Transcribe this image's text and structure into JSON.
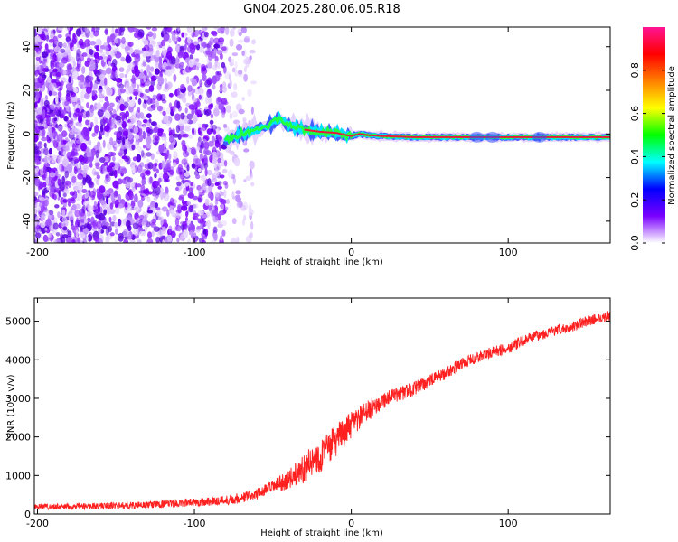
{
  "title": "GN04.2025.280.06.05.R18",
  "colors": {
    "snr_line": "#ff2020",
    "ridge": "#e8193c",
    "background": "#ffffff",
    "axis": "#000000"
  },
  "colormap": {
    "stops": [
      "#ffffff",
      "#7a00ff",
      "#0000ff",
      "#00ffff",
      "#00ff00",
      "#ffff00",
      "#ff8000",
      "#ff0000",
      "#ff1493"
    ]
  },
  "chart_data": [
    {
      "type": "heatmap",
      "title": "GN04.2025.280.06.05.R18",
      "xlabel": "Height of straight line (km)",
      "ylabel": "Frequency (Hz)",
      "xlim": [
        -202,
        165
      ],
      "ylim": [
        -50,
        49
      ],
      "xticks": [
        -200,
        -100,
        0,
        100
      ],
      "xtick_labels": [
        "-200",
        "-100",
        "0",
        "100"
      ],
      "yticks": [
        -40,
        -20,
        0,
        20,
        40
      ],
      "ytick_labels": [
        "-40",
        "-20",
        "0",
        "20",
        "40"
      ],
      "colorbar": {
        "label": "Normalized spectral amplitude",
        "range": [
          0,
          1
        ],
        "ticks": [
          0.0,
          0.2,
          0.4,
          0.6,
          0.8
        ],
        "tick_labels": [
          "0.0",
          "0.2",
          "0.4",
          "0.6",
          "0.8"
        ]
      },
      "ridge_track": {
        "x": [
          -80,
          -70,
          -60,
          -50,
          -45,
          -40,
          -35,
          -30,
          -20,
          -10,
          0,
          5,
          10,
          20,
          40,
          60,
          80,
          100,
          120,
          140,
          165
        ],
        "y": [
          -3,
          0,
          2,
          5,
          7,
          4,
          3,
          2,
          1,
          0.5,
          -1,
          0,
          -0.5,
          -1,
          -1.5,
          -1.5,
          -1.5,
          -1.5,
          -1.5,
          -1.5,
          -1.5
        ]
      }
    },
    {
      "type": "line",
      "xlabel": "Height of straight line (km)",
      "ylabel": "SNR (10 * v/v)",
      "xlim": [
        -202,
        165
      ],
      "ylim": [
        0,
        5600
      ],
      "xticks": [
        -200,
        -100,
        0,
        100
      ],
      "xtick_labels": [
        "-200",
        "-100",
        "0",
        "100"
      ],
      "yticks": [
        0,
        1000,
        2000,
        3000,
        4000,
        5000
      ],
      "ytick_labels": [
        "0",
        "1000",
        "2000",
        "3000",
        "4000",
        "5000"
      ],
      "series": [
        {
          "name": "SNR",
          "x": [
            -202,
            -180,
            -160,
            -140,
            -120,
            -100,
            -80,
            -70,
            -60,
            -50,
            -40,
            -30,
            -20,
            -10,
            0,
            10,
            20,
            30,
            40,
            50,
            60,
            70,
            80,
            90,
            100,
            110,
            120,
            130,
            140,
            150,
            165
          ],
          "y": [
            200,
            190,
            210,
            220,
            260,
            300,
            360,
            420,
            520,
            700,
            900,
            1200,
            1500,
            1900,
            2300,
            2650,
            2950,
            3100,
            3250,
            3450,
            3650,
            3900,
            4050,
            4200,
            4300,
            4500,
            4650,
            4750,
            4850,
            5000,
            5150
          ],
          "noise_amplitude": [
            80,
            80,
            85,
            90,
            100,
            110,
            130,
            140,
            150,
            170,
            250,
            380,
            450,
            420,
            350,
            280,
            220,
            200,
            180,
            170,
            160,
            150,
            150,
            150,
            150,
            140,
            140,
            140,
            130,
            130,
            130
          ]
        }
      ]
    }
  ]
}
